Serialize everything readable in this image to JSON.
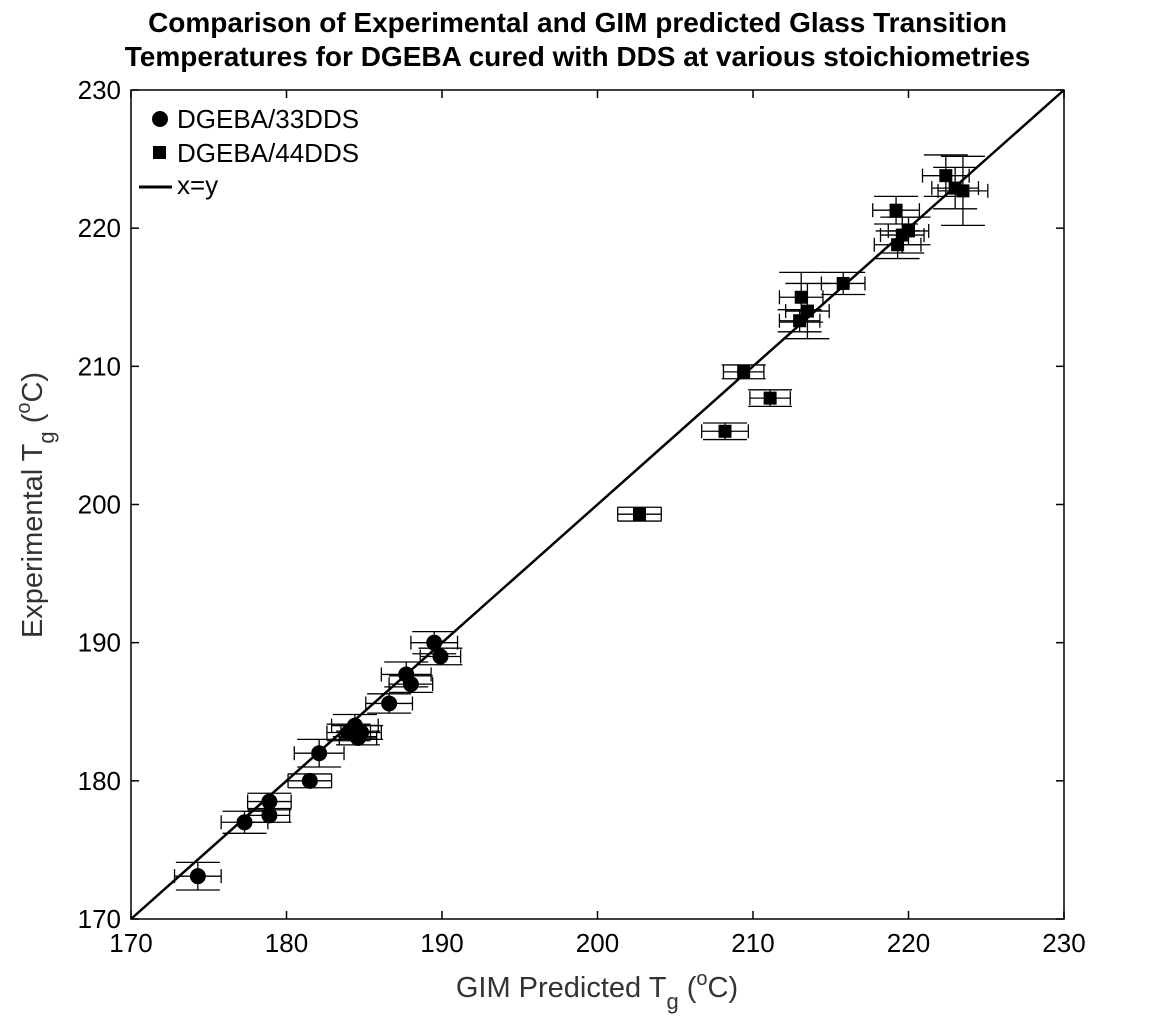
{
  "chart_data": {
    "type": "scatter",
    "title_lines": [
      "Comparison of Experimental and GIM predicted Glass Transition",
      "Temperatures for DGEBA cured with DDS at various stoichiometries"
    ],
    "xlabel": {
      "main": "GIM Predicted T",
      "sub": "g",
      "open": " (",
      "sup": "o",
      "close": "C)"
    },
    "ylabel": {
      "main": "Experimental T",
      "sub": "g",
      "open": " (",
      "sup": "o",
      "close": "C)"
    },
    "xlim": [
      170,
      230
    ],
    "ylim": [
      170,
      230
    ],
    "xticks": [
      "170",
      "180",
      "190",
      "200",
      "210",
      "220",
      "230"
    ],
    "yticks": [
      "170",
      "180",
      "190",
      "200",
      "210",
      "220",
      "230"
    ],
    "grid": false,
    "legend_position": "top-left",
    "series": [
      {
        "name": "DGEBA/33DDS",
        "marker": "circle",
        "points": [
          {
            "x": 174.3,
            "y": 173.1,
            "xerr": 1.5,
            "yerr": 1.0
          },
          {
            "x": 177.3,
            "y": 177.0,
            "xerr": 1.5,
            "yerr": 0.8
          },
          {
            "x": 178.9,
            "y": 178.5,
            "xerr": 1.4,
            "yerr": 0.6
          },
          {
            "x": 178.9,
            "y": 177.5,
            "xerr": 1.3,
            "yerr": 0.5
          },
          {
            "x": 181.5,
            "y": 180.0,
            "xerr": 1.4,
            "yerr": 0.5
          },
          {
            "x": 182.1,
            "y": 182.0,
            "xerr": 1.6,
            "yerr": 1.0
          },
          {
            "x": 184.0,
            "y": 183.5,
            "xerr": 1.4,
            "yerr": 0.6
          },
          {
            "x": 184.4,
            "y": 184.0,
            "xerr": 1.5,
            "yerr": 0.8
          },
          {
            "x": 184.8,
            "y": 183.5,
            "xerr": 1.3,
            "yerr": 0.5
          },
          {
            "x": 184.6,
            "y": 183.1,
            "xerr": 1.2,
            "yerr": 0.5
          },
          {
            "x": 186.6,
            "y": 185.6,
            "xerr": 1.5,
            "yerr": 0.7
          },
          {
            "x": 187.7,
            "y": 187.7,
            "xerr": 1.6,
            "yerr": 0.9
          },
          {
            "x": 188.0,
            "y": 187.0,
            "xerr": 1.4,
            "yerr": 0.6
          },
          {
            "x": 189.5,
            "y": 190.0,
            "xerr": 1.5,
            "yerr": 0.8
          },
          {
            "x": 189.9,
            "y": 189.0,
            "xerr": 1.3,
            "yerr": 0.6
          }
        ]
      },
      {
        "name": "DGEBA/44DDS",
        "marker": "square",
        "points": [
          {
            "x": 202.7,
            "y": 199.3,
            "xerr": 1.4,
            "yerr": 0.5
          },
          {
            "x": 208.2,
            "y": 205.3,
            "xerr": 1.5,
            "yerr": 0.6
          },
          {
            "x": 209.4,
            "y": 209.6,
            "xerr": 1.3,
            "yerr": 0.5
          },
          {
            "x": 211.1,
            "y": 207.7,
            "xerr": 1.3,
            "yerr": 0.6
          },
          {
            "x": 213.1,
            "y": 215.0,
            "xerr": 1.4,
            "yerr": 1.8
          },
          {
            "x": 213.5,
            "y": 214.0,
            "xerr": 1.4,
            "yerr": 2.0
          },
          {
            "x": 213.0,
            "y": 213.3,
            "xerr": 1.3,
            "yerr": 0.8
          },
          {
            "x": 215.8,
            "y": 216.0,
            "xerr": 1.4,
            "yerr": 0.8
          },
          {
            "x": 219.2,
            "y": 221.3,
            "xerr": 1.5,
            "yerr": 1.0
          },
          {
            "x": 219.3,
            "y": 218.8,
            "xerr": 1.5,
            "yerr": 1.0
          },
          {
            "x": 219.6,
            "y": 219.5,
            "xerr": 1.4,
            "yerr": 1.3
          },
          {
            "x": 220.0,
            "y": 219.8,
            "xerr": 1.3,
            "yerr": 1.0
          },
          {
            "x": 222.4,
            "y": 223.8,
            "xerr": 1.5,
            "yerr": 1.5
          },
          {
            "x": 223.0,
            "y": 222.9,
            "xerr": 1.5,
            "yerr": 1.5
          },
          {
            "x": 223.5,
            "y": 222.7,
            "xerr": 1.6,
            "yerr": 2.5
          }
        ]
      }
    ],
    "reference_line": {
      "name": "x=y",
      "from": [
        170,
        170
      ],
      "to": [
        230,
        230
      ]
    }
  }
}
